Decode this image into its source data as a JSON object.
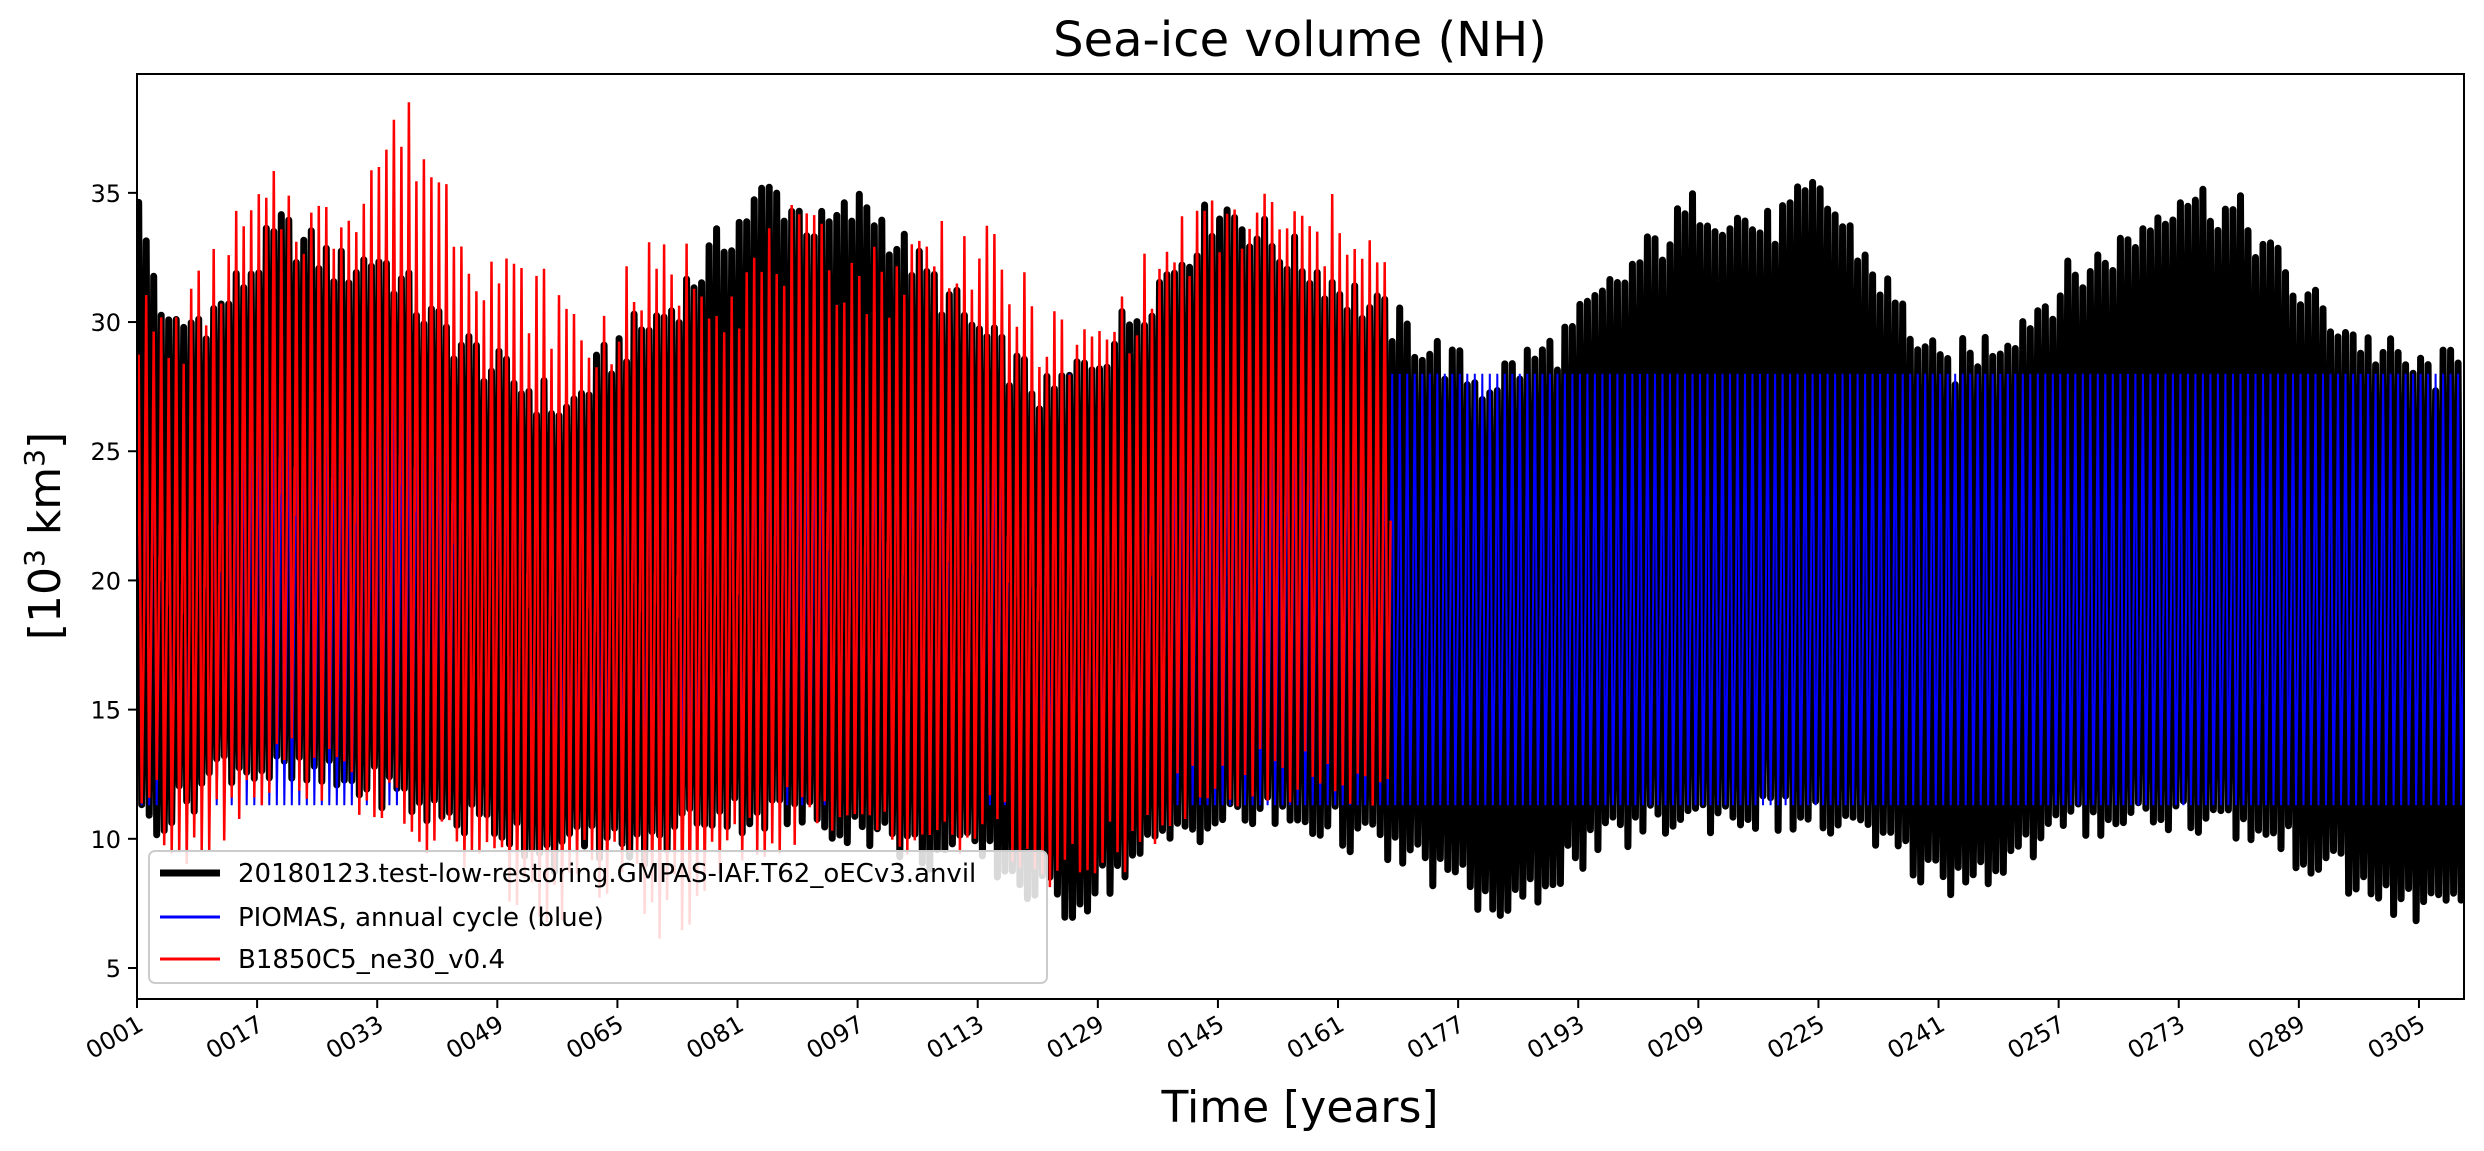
{
  "chart_data": {
    "type": "line",
    "title": "Sea-ice volume (NH)",
    "xlabel": "Time [years]",
    "ylabel_prefix": "[10",
    "ylabel_sup1": "3",
    "ylabel_mid": " km",
    "ylabel_sup2": "3",
    "ylabel_suffix": "]",
    "xlim": [
      1,
      311
    ],
    "ylim": [
      3.8,
      39.6
    ],
    "x_ticks": [
      "0001",
      "0017",
      "0033",
      "0049",
      "0065",
      "0081",
      "0097",
      "0113",
      "0129",
      "0145",
      "0161",
      "0177",
      "0193",
      "0209",
      "0225",
      "0241",
      "0257",
      "0273",
      "0289",
      "0305"
    ],
    "x_tick_values": [
      1,
      17,
      33,
      49,
      65,
      81,
      97,
      113,
      129,
      145,
      161,
      177,
      193,
      209,
      225,
      241,
      257,
      273,
      289,
      305
    ],
    "y_ticks": [
      "5",
      "10",
      "15",
      "20",
      "25",
      "30",
      "35"
    ],
    "y_tick_values": [
      5,
      10,
      15,
      20,
      25,
      30,
      35
    ],
    "grid": false,
    "legend_position": "lower-left",
    "series": [
      {
        "name": "20180123.test-low-restoring.GMPAS-IAF.T62_oECv3.anvil",
        "color": "#000000",
        "x_range": [
          1,
          311
        ],
        "annual_max_envelope": [
          [
            1,
            34.2
          ],
          [
            5,
            29.5
          ],
          [
            12,
            30.5
          ],
          [
            20,
            33.5
          ],
          [
            28,
            32.0
          ],
          [
            33,
            32.5
          ],
          [
            40,
            30.0
          ],
          [
            49,
            28.0
          ],
          [
            58,
            26.5
          ],
          [
            65,
            29.0
          ],
          [
            72,
            30.5
          ],
          [
            80,
            33.5
          ],
          [
            85,
            35.0
          ],
          [
            92,
            33.5
          ],
          [
            98,
            34.5
          ],
          [
            105,
            32.0
          ],
          [
            113,
            29.5
          ],
          [
            122,
            27.0
          ],
          [
            130,
            29.0
          ],
          [
            140,
            32.5
          ],
          [
            145,
            34.5
          ],
          [
            152,
            33.0
          ],
          [
            160,
            31.5
          ],
          [
            170,
            29.5
          ],
          [
            180,
            27.5
          ],
          [
            190,
            29.0
          ],
          [
            200,
            32.0
          ],
          [
            209,
            34.5
          ],
          [
            218,
            33.5
          ],
          [
            225,
            35.0
          ],
          [
            232,
            32.0
          ],
          [
            241,
            28.0
          ],
          [
            250,
            29.5
          ],
          [
            258,
            31.5
          ],
          [
            266,
            33.0
          ],
          [
            273,
            35.0
          ],
          [
            281,
            34.0
          ],
          [
            289,
            31.0
          ],
          [
            298,
            29.0
          ],
          [
            305,
            28.0
          ],
          [
            311,
            28.2
          ]
        ],
        "annual_min_envelope": [
          [
            1,
            10.8
          ],
          [
            5,
            11.0
          ],
          [
            12,
            13.0
          ],
          [
            20,
            12.5
          ],
          [
            33,
            12.0
          ],
          [
            40,
            11.0
          ],
          [
            49,
            10.5
          ],
          [
            56,
            9.5
          ],
          [
            62,
            10.0
          ],
          [
            68,
            9.5
          ],
          [
            75,
            11.0
          ],
          [
            85,
            11.0
          ],
          [
            97,
            10.5
          ],
          [
            105,
            9.5
          ],
          [
            113,
            9.5
          ],
          [
            120,
            8.0
          ],
          [
            125,
            7.5
          ],
          [
            132,
            9.0
          ],
          [
            140,
            10.5
          ],
          [
            150,
            11.0
          ],
          [
            160,
            10.5
          ],
          [
            168,
            9.5
          ],
          [
            176,
            8.5
          ],
          [
            183,
            7.0
          ],
          [
            190,
            9.0
          ],
          [
            200,
            10.5
          ],
          [
            209,
            11.0
          ],
          [
            220,
            11.0
          ],
          [
            228,
            10.5
          ],
          [
            235,
            9.5
          ],
          [
            241,
            8.5
          ],
          [
            248,
            9.0
          ],
          [
            257,
            10.5
          ],
          [
            265,
            11.0
          ],
          [
            273,
            11.0
          ],
          [
            281,
            10.5
          ],
          [
            289,
            9.5
          ],
          [
            298,
            8.0
          ],
          [
            305,
            7.2
          ],
          [
            311,
            8.5
          ]
        ]
      },
      {
        "name": "PIOMAS, annual cycle (blue)",
        "color": "#0000ff",
        "x_range": [
          1,
          311
        ],
        "annual_max": 28.0,
        "annual_min": 11.3
      },
      {
        "name": "B1850C5_ne30_v0.4",
        "color": "#ff0000",
        "x_range": [
          1,
          168
        ],
        "annual_max_envelope": [
          [
            1,
            30.0
          ],
          [
            5,
            29.0
          ],
          [
            10,
            31.0
          ],
          [
            15,
            33.5
          ],
          [
            20,
            34.5
          ],
          [
            26,
            33.5
          ],
          [
            30,
            35.0
          ],
          [
            36,
            37.5
          ],
          [
            40,
            36.0
          ],
          [
            45,
            33.0
          ],
          [
            50,
            31.5
          ],
          [
            56,
            30.5
          ],
          [
            62,
            29.0
          ],
          [
            68,
            31.5
          ],
          [
            75,
            32.0
          ],
          [
            80,
            31.0
          ],
          [
            88,
            33.0
          ],
          [
            95,
            32.0
          ],
          [
            100,
            31.5
          ],
          [
            108,
            33.0
          ],
          [
            115,
            32.0
          ],
          [
            120,
            30.0
          ],
          [
            126,
            28.5
          ],
          [
            132,
            30.0
          ],
          [
            140,
            33.0
          ],
          [
            145,
            33.5
          ],
          [
            152,
            34.0
          ],
          [
            158,
            33.0
          ],
          [
            163,
            34.0
          ],
          [
            168,
            31.0
          ]
        ],
        "annual_min_envelope": [
          [
            1,
            12.0
          ],
          [
            5,
            10.0
          ],
          [
            10,
            10.5
          ],
          [
            15,
            12.0
          ],
          [
            20,
            13.0
          ],
          [
            26,
            12.5
          ],
          [
            30,
            12.0
          ],
          [
            36,
            10.5
          ],
          [
            40,
            10.0
          ],
          [
            45,
            9.5
          ],
          [
            50,
            8.5
          ],
          [
            56,
            7.0
          ],
          [
            60,
            9.0
          ],
          [
            65,
            8.5
          ],
          [
            70,
            7.0
          ],
          [
            75,
            8.0
          ],
          [
            80,
            9.5
          ],
          [
            88,
            11.0
          ],
          [
            95,
            10.0
          ],
          [
            100,
            11.0
          ],
          [
            108,
            10.0
          ],
          [
            115,
            10.5
          ],
          [
            120,
            9.0
          ],
          [
            126,
            8.5
          ],
          [
            132,
            10.0
          ],
          [
            140,
            11.5
          ],
          [
            145,
            12.0
          ],
          [
            152,
            12.5
          ],
          [
            158,
            12.5
          ],
          [
            164,
            12.0
          ],
          [
            168,
            13.0
          ]
        ]
      }
    ]
  }
}
